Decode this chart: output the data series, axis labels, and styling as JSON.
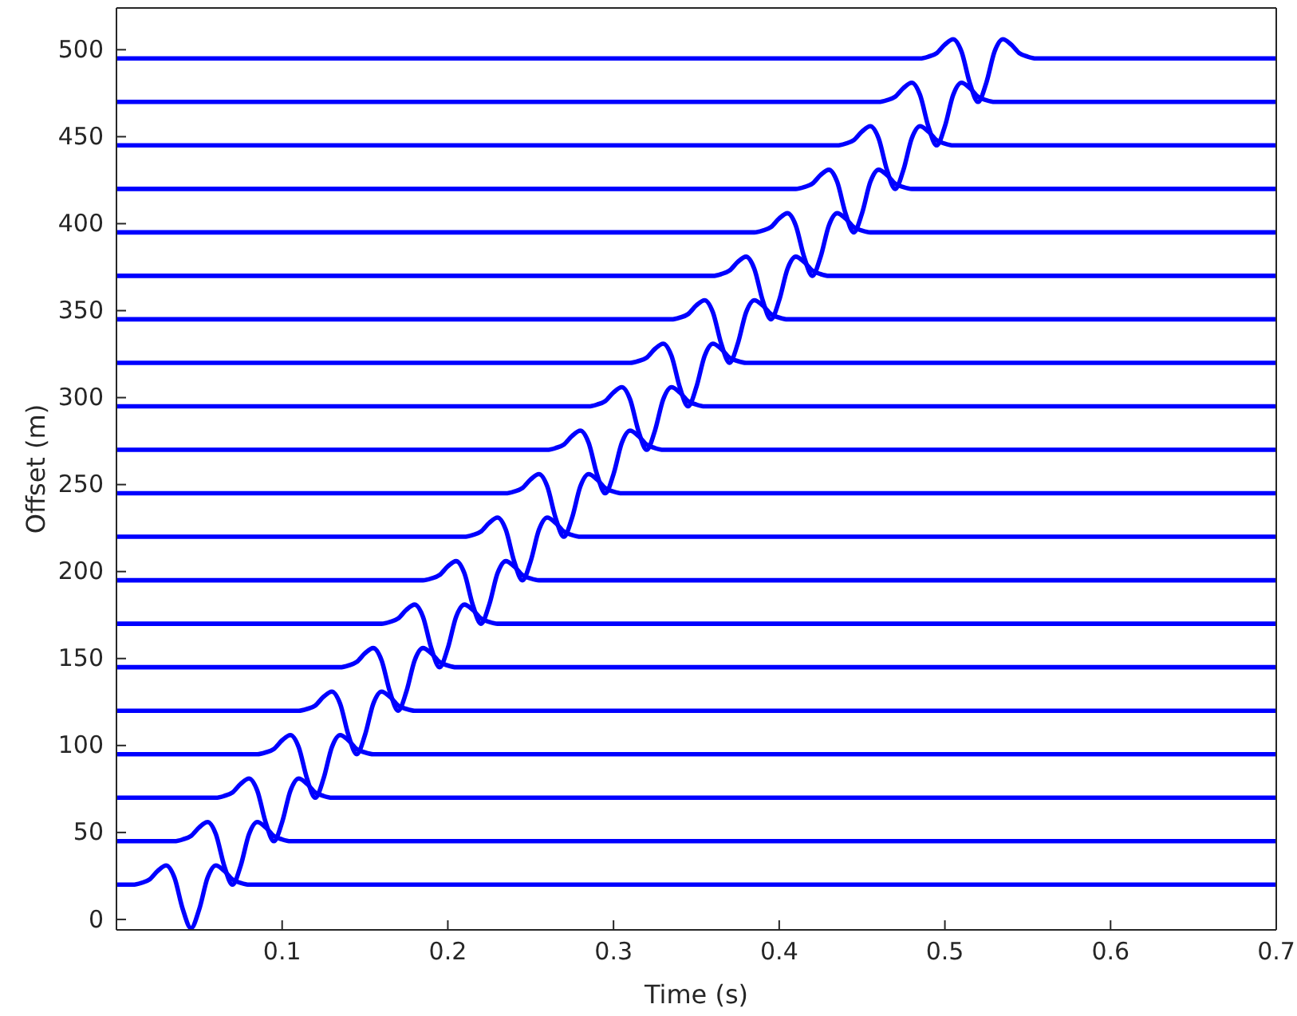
{
  "chart_data": {
    "type": "line",
    "xlabel": "Time (s)",
    "ylabel": "Offset (m)",
    "xlim": [
      0,
      0.7
    ],
    "ylim": [
      -6,
      524
    ],
    "xticks": [
      0.1,
      0.2,
      0.3,
      0.4,
      0.5,
      0.6,
      0.7
    ],
    "yticks": [
      0,
      50,
      100,
      150,
      200,
      250,
      300,
      350,
      400,
      450,
      500
    ],
    "grid": false,
    "series": [
      {
        "color": "#0000ff",
        "x": [
          0,
          0.01,
          0.015,
          0.02,
          0.025,
          0.03,
          0.035,
          0.04,
          0.045,
          0.05,
          0.055,
          0.06,
          0.065,
          0.07,
          0.075,
          0.08,
          0.7
        ],
        "values": [
          20,
          20,
          21,
          23,
          28,
          31,
          24,
          6,
          -5,
          6,
          24,
          31,
          28,
          23,
          21,
          20,
          20
        ]
      },
      {
        "color": "#0000ff",
        "x": [
          0,
          0.035,
          0.04,
          0.045,
          0.05,
          0.055,
          0.06,
          0.065,
          0.07,
          0.075,
          0.08,
          0.085,
          0.09,
          0.095,
          0.1,
          0.105,
          0.7
        ],
        "values": [
          45,
          45,
          46,
          48,
          53,
          56,
          49,
          31,
          20,
          31,
          49,
          56,
          53,
          48,
          46,
          45,
          45
        ]
      },
      {
        "color": "#0000ff",
        "x": [
          0,
          0.06,
          0.065,
          0.07,
          0.075,
          0.08,
          0.085,
          0.09,
          0.095,
          0.1,
          0.105,
          0.11,
          0.115,
          0.12,
          0.125,
          0.13,
          0.7
        ],
        "values": [
          70,
          70,
          71,
          73,
          78,
          81,
          74,
          56,
          45,
          56,
          74,
          81,
          78,
          73,
          71,
          70,
          70
        ]
      },
      {
        "color": "#0000ff",
        "x": [
          0,
          0.085,
          0.09,
          0.095,
          0.1,
          0.105,
          0.11,
          0.115,
          0.12,
          0.125,
          0.13,
          0.135,
          0.14,
          0.145,
          0.15,
          0.155,
          0.7
        ],
        "values": [
          95,
          95,
          96,
          98,
          103,
          106,
          99,
          81,
          70,
          81,
          99,
          106,
          103,
          98,
          96,
          95,
          95
        ]
      },
      {
        "color": "#0000ff",
        "x": [
          0,
          0.11,
          0.115,
          0.12,
          0.125,
          0.13,
          0.135,
          0.14,
          0.145,
          0.15,
          0.155,
          0.16,
          0.165,
          0.17,
          0.175,
          0.18,
          0.7
        ],
        "values": [
          120,
          120,
          121,
          123,
          128,
          131,
          124,
          106,
          95,
          106,
          124,
          131,
          128,
          123,
          121,
          120,
          120
        ]
      },
      {
        "color": "#0000ff",
        "x": [
          0,
          0.135,
          0.14,
          0.145,
          0.15,
          0.155,
          0.16,
          0.165,
          0.17,
          0.175,
          0.18,
          0.185,
          0.19,
          0.195,
          0.2,
          0.205,
          0.7
        ],
        "values": [
          145,
          145,
          146,
          148,
          153,
          156,
          149,
          131,
          120,
          131,
          149,
          156,
          153,
          148,
          146,
          145,
          145
        ]
      },
      {
        "color": "#0000ff",
        "x": [
          0,
          0.16,
          0.165,
          0.17,
          0.175,
          0.18,
          0.185,
          0.19,
          0.195,
          0.2,
          0.205,
          0.21,
          0.215,
          0.22,
          0.225,
          0.23,
          0.7
        ],
        "values": [
          170,
          170,
          171,
          173,
          178,
          181,
          174,
          156,
          145,
          156,
          174,
          181,
          178,
          173,
          171,
          170,
          170
        ]
      },
      {
        "color": "#0000ff",
        "x": [
          0,
          0.185,
          0.19,
          0.195,
          0.2,
          0.205,
          0.21,
          0.215,
          0.22,
          0.225,
          0.23,
          0.235,
          0.24,
          0.245,
          0.25,
          0.255,
          0.7
        ],
        "values": [
          195,
          195,
          196,
          198,
          203,
          206,
          199,
          181,
          170,
          181,
          199,
          206,
          203,
          198,
          196,
          195,
          195
        ]
      },
      {
        "color": "#0000ff",
        "x": [
          0,
          0.21,
          0.215,
          0.22,
          0.225,
          0.23,
          0.235,
          0.24,
          0.245,
          0.25,
          0.255,
          0.26,
          0.265,
          0.27,
          0.275,
          0.28,
          0.7
        ],
        "values": [
          220,
          220,
          221,
          223,
          228,
          231,
          224,
          206,
          195,
          206,
          224,
          231,
          228,
          223,
          221,
          220,
          220
        ]
      },
      {
        "color": "#0000ff",
        "x": [
          0,
          0.235,
          0.24,
          0.245,
          0.25,
          0.255,
          0.26,
          0.265,
          0.27,
          0.275,
          0.28,
          0.285,
          0.29,
          0.295,
          0.3,
          0.305,
          0.7
        ],
        "values": [
          245,
          245,
          246,
          248,
          253,
          256,
          249,
          231,
          220,
          231,
          249,
          256,
          253,
          248,
          246,
          245,
          245
        ]
      },
      {
        "color": "#0000ff",
        "x": [
          0,
          0.26,
          0.265,
          0.27,
          0.275,
          0.28,
          0.285,
          0.29,
          0.295,
          0.3,
          0.305,
          0.31,
          0.315,
          0.32,
          0.325,
          0.33,
          0.7
        ],
        "values": [
          270,
          270,
          271,
          273,
          278,
          281,
          274,
          256,
          245,
          256,
          274,
          281,
          278,
          273,
          271,
          270,
          270
        ]
      },
      {
        "color": "#0000ff",
        "x": [
          0,
          0.285,
          0.29,
          0.295,
          0.3,
          0.305,
          0.31,
          0.315,
          0.32,
          0.325,
          0.33,
          0.335,
          0.34,
          0.345,
          0.35,
          0.355,
          0.7
        ],
        "values": [
          295,
          295,
          296,
          298,
          303,
          306,
          299,
          281,
          270,
          281,
          299,
          306,
          303,
          298,
          296,
          295,
          295
        ]
      },
      {
        "color": "#0000ff",
        "x": [
          0,
          0.31,
          0.315,
          0.32,
          0.325,
          0.33,
          0.335,
          0.34,
          0.345,
          0.35,
          0.355,
          0.36,
          0.365,
          0.37,
          0.375,
          0.38,
          0.7
        ],
        "values": [
          320,
          320,
          321,
          323,
          328,
          331,
          324,
          306,
          295,
          306,
          324,
          331,
          328,
          323,
          321,
          320,
          320
        ]
      },
      {
        "color": "#0000ff",
        "x": [
          0,
          0.335,
          0.34,
          0.345,
          0.35,
          0.355,
          0.36,
          0.365,
          0.37,
          0.375,
          0.38,
          0.385,
          0.39,
          0.395,
          0.4,
          0.405,
          0.7
        ],
        "values": [
          345,
          345,
          346,
          348,
          353,
          356,
          349,
          331,
          320,
          331,
          349,
          356,
          353,
          348,
          346,
          345,
          345
        ]
      },
      {
        "color": "#0000ff",
        "x": [
          0,
          0.36,
          0.365,
          0.37,
          0.375,
          0.38,
          0.385,
          0.39,
          0.395,
          0.4,
          0.405,
          0.41,
          0.415,
          0.42,
          0.425,
          0.43,
          0.7
        ],
        "values": [
          370,
          370,
          371,
          373,
          378,
          381,
          374,
          356,
          345,
          356,
          374,
          381,
          378,
          373,
          371,
          370,
          370
        ]
      },
      {
        "color": "#0000ff",
        "x": [
          0,
          0.385,
          0.39,
          0.395,
          0.4,
          0.405,
          0.41,
          0.415,
          0.42,
          0.425,
          0.43,
          0.435,
          0.44,
          0.445,
          0.45,
          0.455,
          0.7
        ],
        "values": [
          395,
          395,
          396,
          398,
          403,
          406,
          399,
          381,
          370,
          381,
          399,
          406,
          403,
          398,
          396,
          395,
          395
        ]
      },
      {
        "color": "#0000ff",
        "x": [
          0,
          0.41,
          0.415,
          0.42,
          0.425,
          0.43,
          0.435,
          0.44,
          0.445,
          0.45,
          0.455,
          0.46,
          0.465,
          0.47,
          0.475,
          0.48,
          0.7
        ],
        "values": [
          420,
          420,
          421,
          423,
          428,
          431,
          424,
          406,
          395,
          406,
          424,
          431,
          428,
          423,
          421,
          420,
          420
        ]
      },
      {
        "color": "#0000ff",
        "x": [
          0,
          0.435,
          0.44,
          0.445,
          0.45,
          0.455,
          0.46,
          0.465,
          0.47,
          0.475,
          0.48,
          0.485,
          0.49,
          0.495,
          0.5,
          0.505,
          0.7
        ],
        "values": [
          445,
          445,
          446,
          448,
          453,
          456,
          449,
          431,
          420,
          431,
          449,
          456,
          453,
          448,
          446,
          445,
          445
        ]
      },
      {
        "color": "#0000ff",
        "x": [
          0,
          0.46,
          0.465,
          0.47,
          0.475,
          0.48,
          0.485,
          0.49,
          0.495,
          0.5,
          0.505,
          0.51,
          0.515,
          0.52,
          0.525,
          0.53,
          0.7
        ],
        "values": [
          470,
          470,
          471,
          473,
          478,
          481,
          474,
          456,
          445,
          456,
          474,
          481,
          478,
          473,
          471,
          470,
          470
        ]
      },
      {
        "color": "#0000ff",
        "x": [
          0,
          0.485,
          0.49,
          0.495,
          0.5,
          0.505,
          0.51,
          0.515,
          0.52,
          0.525,
          0.53,
          0.535,
          0.54,
          0.545,
          0.55,
          0.555,
          0.7
        ],
        "values": [
          495,
          495,
          496,
          498,
          503,
          506,
          499,
          481,
          470,
          481,
          499,
          506,
          503,
          498,
          496,
          495,
          495
        ]
      }
    ]
  }
}
